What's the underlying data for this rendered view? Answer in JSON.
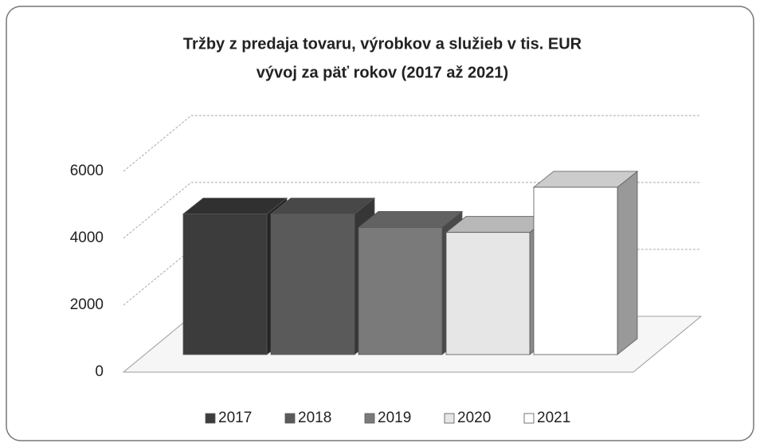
{
  "chart_data": {
    "type": "bar3d",
    "title": "Tržby z predaja tovaru, výrobkov a služieb v tis. EUR",
    "subtitle": "vývoj za päť rokov (2017 až 2021)",
    "series": [
      {
        "name": "2017",
        "color": "#3c3c3c",
        "values": [
          4200
        ]
      },
      {
        "name": "2018",
        "color": "#5a5a5a",
        "values": [
          4200
        ]
      },
      {
        "name": "2019",
        "color": "#7a7a7a",
        "values": [
          3800
        ]
      },
      {
        "name": "2020",
        "color": "#e6e6e6",
        "values": [
          3650
        ]
      },
      {
        "name": "2021",
        "color": "#ffffff",
        "values": [
          5000
        ]
      }
    ],
    "ylim": [
      0,
      6000
    ],
    "yticks": [
      0,
      2000,
      4000,
      6000
    ],
    "grid": true,
    "legend": "bottom"
  }
}
